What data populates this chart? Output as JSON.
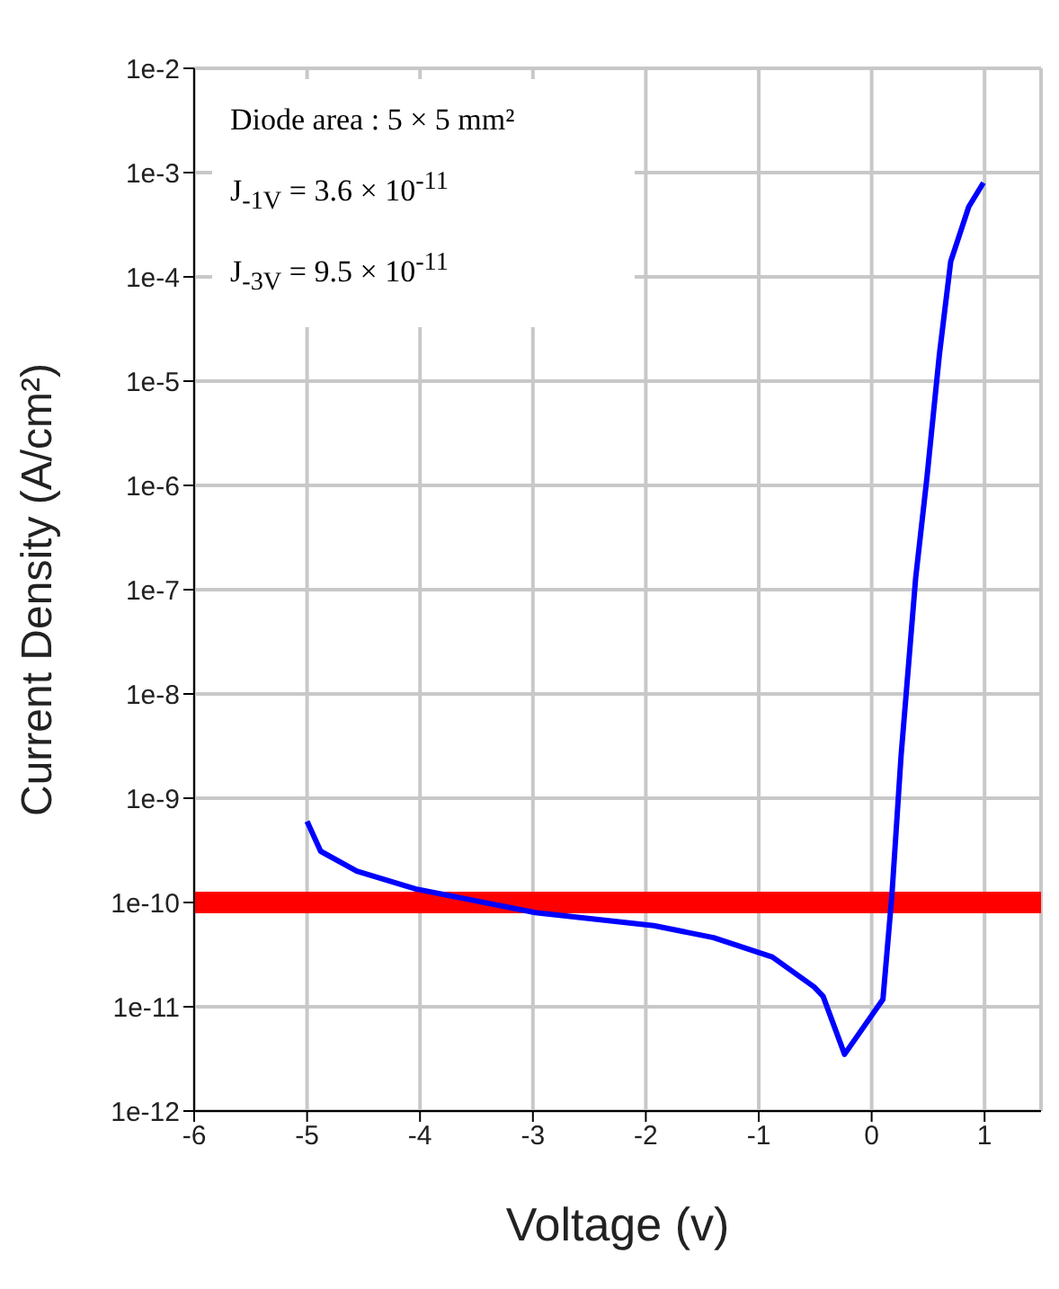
{
  "chart_data": {
    "type": "line",
    "xlabel": "Voltage (v)",
    "ylabel": "Current Density (A/cm²)",
    "annotations": [
      "Diode area : 5 × 5 mm²",
      "J$_{-1V}$ = 3.6 × 10$^{-11}$",
      "J$_{-3V}$ = 9.5 × 10$^{-11}$"
    ],
    "series": [
      {
        "color": "#0000ff",
        "x": [
          -5.0,
          -4.88,
          -4.56,
          -4.04,
          -2.98,
          -1.93,
          -1.4,
          -0.88,
          -0.51,
          -0.43,
          -0.24,
          0.1,
          0.18,
          0.26,
          0.39,
          0.49,
          0.6,
          0.7,
          0.86,
          0.99
        ],
        "values": [
          6e-10,
          3.1e-10,
          2e-10,
          1.35e-10,
          8e-11,
          6e-11,
          4.6e-11,
          3e-11,
          1.55e-11,
          1.26e-11,
          3.5e-12,
          1.18e-11,
          1.2e-10,
          2.5e-09,
          1.3e-07,
          1.2e-06,
          1.8e-05,
          0.00014,
          0.00047,
          0.0008
        ]
      }
    ],
    "xlim": [
      -6,
      1.5
    ],
    "xticks": [
      -6,
      -5,
      -4,
      -3,
      -2,
      -1,
      0,
      1
    ],
    "ylim": [
      1e-12,
      0.01
    ],
    "yticks": [
      {
        "value": 1e-12,
        "label": "1e-12"
      },
      {
        "value": 1e-11,
        "label": "1e-11"
      },
      {
        "value": 1e-10,
        "label": "1e-10"
      },
      {
        "value": 1e-09,
        "label": "1e-9"
      },
      {
        "value": 1e-08,
        "label": "1e-8"
      },
      {
        "value": 1e-07,
        "label": "1e-7"
      },
      {
        "value": 1e-06,
        "label": "1e-6"
      },
      {
        "value": 1e-05,
        "label": "1e-5"
      },
      {
        "value": 0.0001,
        "label": "1e-4"
      },
      {
        "value": 0.001,
        "label": "1e-3"
      },
      {
        "value": 0.01,
        "label": "1e-2"
      }
    ],
    "log": "y",
    "grid": true,
    "marker": "none",
    "line_style": "solid",
    "ref_lines": [
      {
        "axis": "y",
        "value": 1e-10,
        "color": "#ff0000"
      }
    ]
  }
}
